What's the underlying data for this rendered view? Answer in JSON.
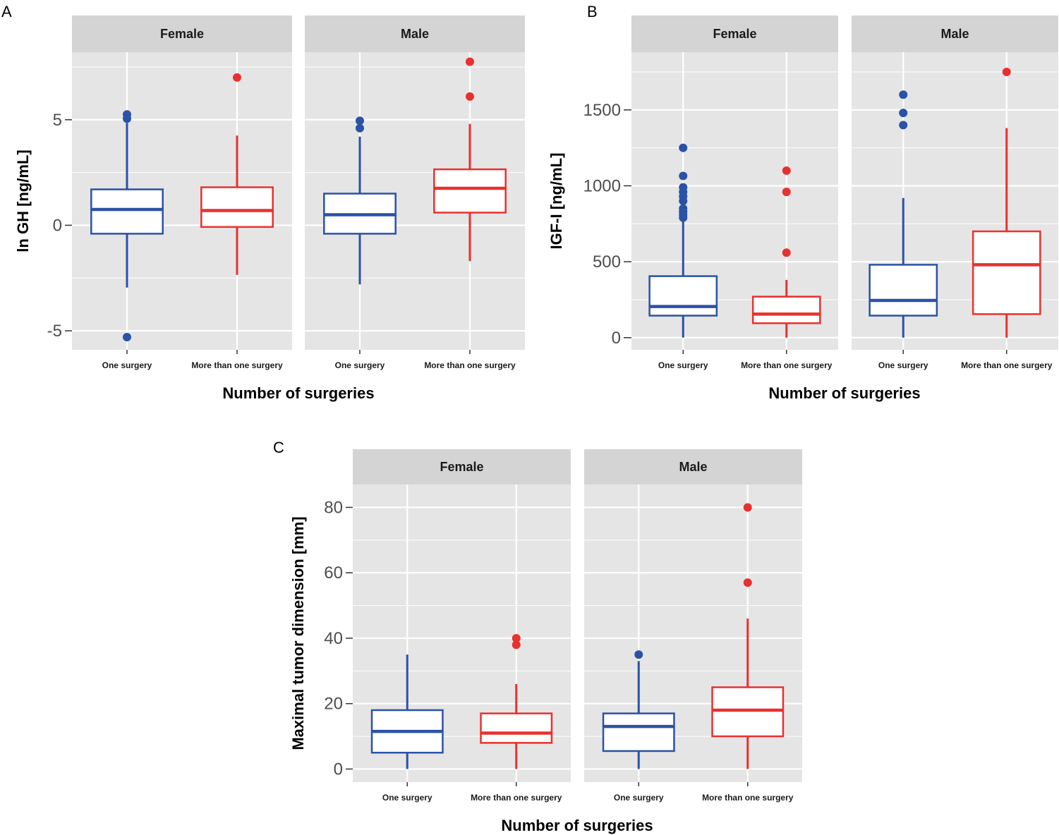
{
  "colors": {
    "one_surgery": "#2a52a6",
    "more_than_one": "#e8312f",
    "panel_bg": "#e5e5e5",
    "strip_bg": "#d4d4d4",
    "grid": "#ffffff"
  },
  "chart_data": [
    {
      "id": "A",
      "type": "boxplot",
      "panel_label": "A",
      "ylabel": "ln GH [ng/mL]",
      "xlabel": "Number of surgeries",
      "ylim": [
        -5.9,
        8.2
      ],
      "y_ticks": [
        -5,
        0,
        5
      ],
      "y_tick_labels": [
        "-5",
        "0",
        "5"
      ],
      "facets": [
        {
          "label": "Female",
          "categories": [
            "One surgery",
            "More than one surgery"
          ],
          "boxes": [
            {
              "category": "One surgery",
              "group": "one",
              "whisker_low": -2.95,
              "q1": -0.4,
              "median": 0.75,
              "q3": 1.7,
              "whisker_high": 4.85,
              "outliers": [
                5.25,
                5.05,
                -5.3
              ]
            },
            {
              "category": "More than one surgery",
              "group": "more",
              "whisker_low": -2.35,
              "q1": -0.08,
              "median": 0.7,
              "q3": 1.8,
              "whisker_high": 4.25,
              "outliers": [
                7.0
              ]
            }
          ]
        },
        {
          "label": "Male",
          "categories": [
            "One surgery",
            "More than one surgery"
          ],
          "boxes": [
            {
              "category": "One surgery",
              "group": "one",
              "whisker_low": -2.8,
              "q1": -0.4,
              "median": 0.5,
              "q3": 1.5,
              "whisker_high": 4.2,
              "outliers": [
                4.95,
                4.6
              ]
            },
            {
              "category": "More than one surgery",
              "group": "more",
              "whisker_low": -1.7,
              "q1": 0.6,
              "median": 1.75,
              "q3": 2.65,
              "whisker_high": 4.8,
              "outliers": [
                7.75,
                6.1
              ]
            }
          ]
        }
      ]
    },
    {
      "id": "B",
      "type": "boxplot",
      "panel_label": "B",
      "ylabel": "IGF-I [ng/mL]",
      "xlabel": "Number of surgeries",
      "ylim": [
        -80,
        1880
      ],
      "y_ticks": [
        0,
        500,
        1000,
        1500
      ],
      "y_tick_labels": [
        "0",
        "500",
        "1000",
        "1500"
      ],
      "facets": [
        {
          "label": "Female",
          "categories": [
            "One surgery",
            "More than one surgery"
          ],
          "boxes": [
            {
              "category": "One surgery",
              "group": "one",
              "whisker_low": 0,
              "q1": 145,
              "median": 205,
              "q3": 405,
              "whisker_high": 780,
              "outliers": [
                1250,
                1065,
                990,
                960,
                930,
                900,
                850,
                830,
                810,
                790
              ]
            },
            {
              "category": "More than one surgery",
              "group": "more",
              "whisker_low": 0,
              "q1": 95,
              "median": 155,
              "q3": 270,
              "whisker_high": 380,
              "outliers": [
                1100,
                960,
                560
              ]
            }
          ]
        },
        {
          "label": "Male",
          "categories": [
            "One surgery",
            "More than one surgery"
          ],
          "boxes": [
            {
              "category": "One surgery",
              "group": "one",
              "whisker_low": 0,
              "q1": 145,
              "median": 245,
              "q3": 480,
              "whisker_high": 920,
              "outliers": [
                1600,
                1480,
                1400
              ]
            },
            {
              "category": "More than one surgery",
              "group": "more",
              "whisker_low": 0,
              "q1": 155,
              "median": 480,
              "q3": 700,
              "whisker_high": 1380,
              "outliers": [
                1750
              ]
            }
          ]
        }
      ]
    },
    {
      "id": "C",
      "type": "boxplot",
      "panel_label": "C",
      "ylabel": "Maximal tumor dimension [mm]",
      "xlabel": "Number of surgeries",
      "ylim": [
        -4,
        87
      ],
      "y_ticks": [
        0,
        20,
        40,
        60,
        80
      ],
      "y_tick_labels": [
        "0",
        "20",
        "40",
        "60",
        "80"
      ],
      "facets": [
        {
          "label": "Female",
          "categories": [
            "One surgery",
            "More than one surgery"
          ],
          "boxes": [
            {
              "category": "One surgery",
              "group": "one",
              "whisker_low": 0,
              "q1": 5,
              "median": 11.5,
              "q3": 18,
              "whisker_high": 35,
              "outliers": []
            },
            {
              "category": "More than one surgery",
              "group": "more",
              "whisker_low": 0,
              "q1": 8,
              "median": 11,
              "q3": 17,
              "whisker_high": 26,
              "outliers": [
                40,
                38
              ]
            }
          ]
        },
        {
          "label": "Male",
          "categories": [
            "One surgery",
            "More than one surgery"
          ],
          "boxes": [
            {
              "category": "One surgery",
              "group": "one",
              "whisker_low": 0,
              "q1": 5.5,
              "median": 13,
              "q3": 17,
              "whisker_high": 33,
              "outliers": [
                35
              ]
            },
            {
              "category": "More than one surgery",
              "group": "more",
              "whisker_low": 0,
              "q1": 10,
              "median": 18,
              "q3": 25,
              "whisker_high": 46,
              "outliers": [
                80,
                57
              ]
            }
          ]
        }
      ]
    }
  ]
}
